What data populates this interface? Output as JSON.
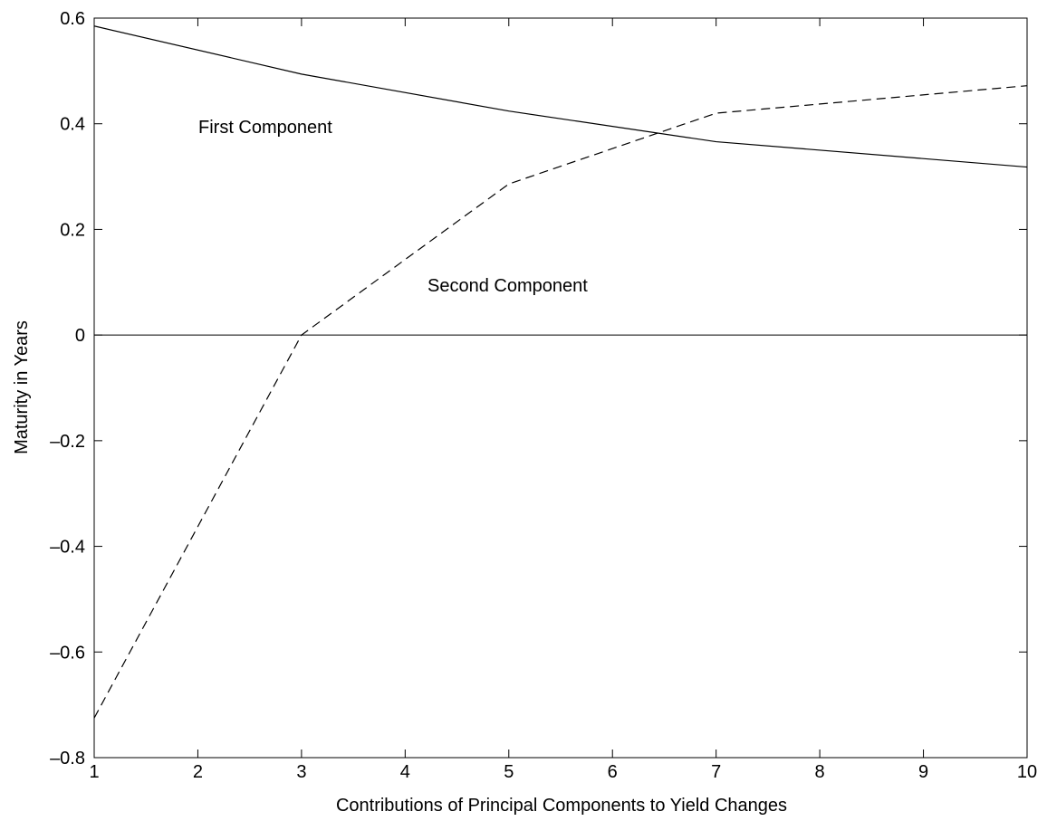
{
  "chart_data": {
    "type": "line",
    "xlabel": "Contributions of Principal Components to Yield Changes",
    "ylabel": "Maturity in Years",
    "x": [
      1,
      3,
      5,
      7,
      10
    ],
    "series": [
      {
        "color": "#000000",
        "dash": "solid",
        "values": [
          0.585,
          0.494,
          0.424,
          0.366,
          0.318
        ]
      },
      {
        "color": "#000000",
        "dash": "dashed",
        "values": [
          -0.725,
          0,
          0.286,
          0.42,
          0.472
        ]
      }
    ],
    "annotations": [
      "First Component",
      "Second Component"
    ],
    "hline": 0,
    "xlim": [
      1,
      10
    ],
    "xticks": [
      1,
      2,
      3,
      4,
      5,
      6,
      7,
      8,
      9,
      10
    ],
    "ylim": [
      -0.8,
      0.6
    ],
    "yticks": [
      {
        "value": -0.8,
        "label": "–0.8"
      },
      {
        "value": -0.6,
        "label": "–0.6"
      },
      {
        "value": -0.4,
        "label": "–0.4"
      },
      {
        "value": -0.2,
        "label": "–0.2"
      },
      0,
      0.2,
      0.4,
      0.6
    ],
    "grid": false
  }
}
